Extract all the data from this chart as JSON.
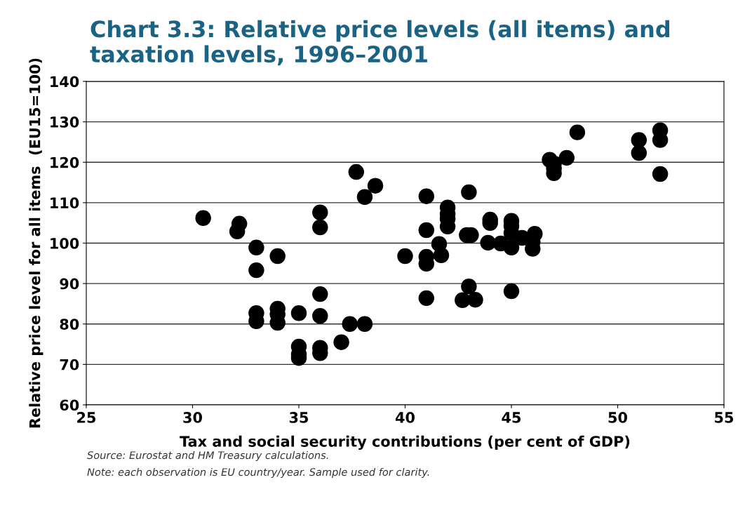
{
  "chart_data": {
    "type": "scatter",
    "title": "Chart 3.3: Relative price levels (all items) and taxation levels, 1996–2001",
    "xlabel": "Tax and social security contributions (per cent of GDP)",
    "ylabel": "Relative price level for all items  (EU15=100)",
    "x": [
      30.5,
      32.1,
      32.2,
      33,
      33,
      34,
      33,
      33,
      34,
      34,
      34,
      35,
      36,
      36,
      35,
      35,
      35,
      36,
      36,
      37,
      37.4,
      38.1,
      36,
      36,
      37.7,
      38.6,
      38.1,
      40,
      41,
      41,
      41,
      41,
      41,
      41.6,
      41.7,
      42,
      42,
      42,
      42,
      43,
      42.9,
      43.1,
      43,
      42.7,
      43.3,
      43.9,
      44.5,
      44,
      44,
      45,
      45,
      45,
      45,
      45,
      45.5,
      46.1,
      46,
      46,
      46.8,
      47,
      47,
      47,
      47.6,
      48.1,
      51,
      51,
      52,
      52,
      52
    ],
    "series": [
      {
        "color": "#000000",
        "values": [
          106.2,
          102.9,
          104.8,
          98.9,
          93.3,
          96.8,
          82.7,
          80.7,
          83.8,
          82.4,
          80.3,
          82.7,
          87.4,
          82.0,
          74.4,
          72.5,
          71.6,
          74.1,
          72.8,
          75.5,
          80,
          80,
          107.6,
          103.9,
          117.6,
          114.2,
          111.4,
          96.8,
          111.6,
          103.2,
          96.6,
          94.9,
          86.4,
          99.8,
          97,
          108.8,
          107.2,
          106,
          104.1,
          112.6,
          102,
          102,
          89.3,
          85.9,
          86,
          100.1,
          99.9,
          105.8,
          105,
          105.5,
          104.2,
          102.5,
          98.9,
          88.1,
          101.3,
          102.3,
          100.3,
          98.6,
          120.6,
          119.7,
          118.5,
          117.3,
          121.1,
          127.4,
          125.5,
          122.3,
          127.9,
          125.5,
          117.1
        ]
      }
    ],
    "xlim": [
      25,
      55
    ],
    "xticks": [
      25,
      30,
      35,
      40,
      45,
      50,
      55
    ],
    "ylim": [
      60,
      140
    ],
    "yticks": [
      60,
      70,
      80,
      90,
      100,
      110,
      120,
      130,
      140
    ],
    "grid": "y",
    "marker": "circle",
    "annotations": [
      "Source: Eurostat and HM Treasury calculations.",
      "Note: each observation is EU country/year. Sample used for clarity."
    ]
  }
}
